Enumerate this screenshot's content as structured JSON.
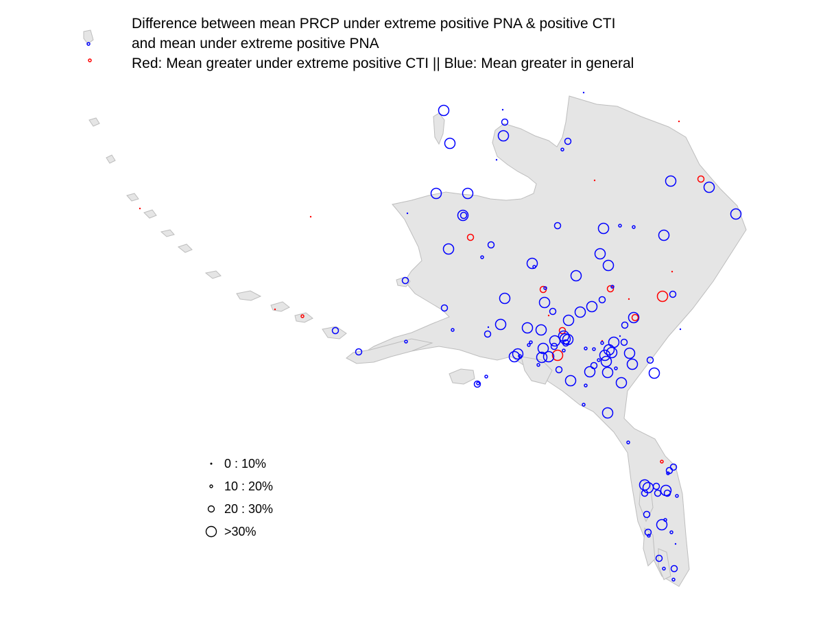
{
  "title": {
    "line1": "Difference between mean PRCP under extreme positive PNA & positive CTI",
    "line2": "and mean under extreme positive PNA",
    "line3": "Red: Mean greater under extreme positive CTI || Blue: Mean greater in general"
  },
  "legend": {
    "items": [
      {
        "label": "0 : 10%",
        "size": "tiny"
      },
      {
        "label": "10 : 20%",
        "size": "small"
      },
      {
        "label": "20 : 30%",
        "size": "medium"
      },
      {
        "label": ">30%",
        "size": "large"
      }
    ]
  },
  "colors": {
    "land": "#e5e5e5",
    "coast": "#bdbdbd",
    "blue": "#0000ff",
    "red": "#ff0000"
  }
}
